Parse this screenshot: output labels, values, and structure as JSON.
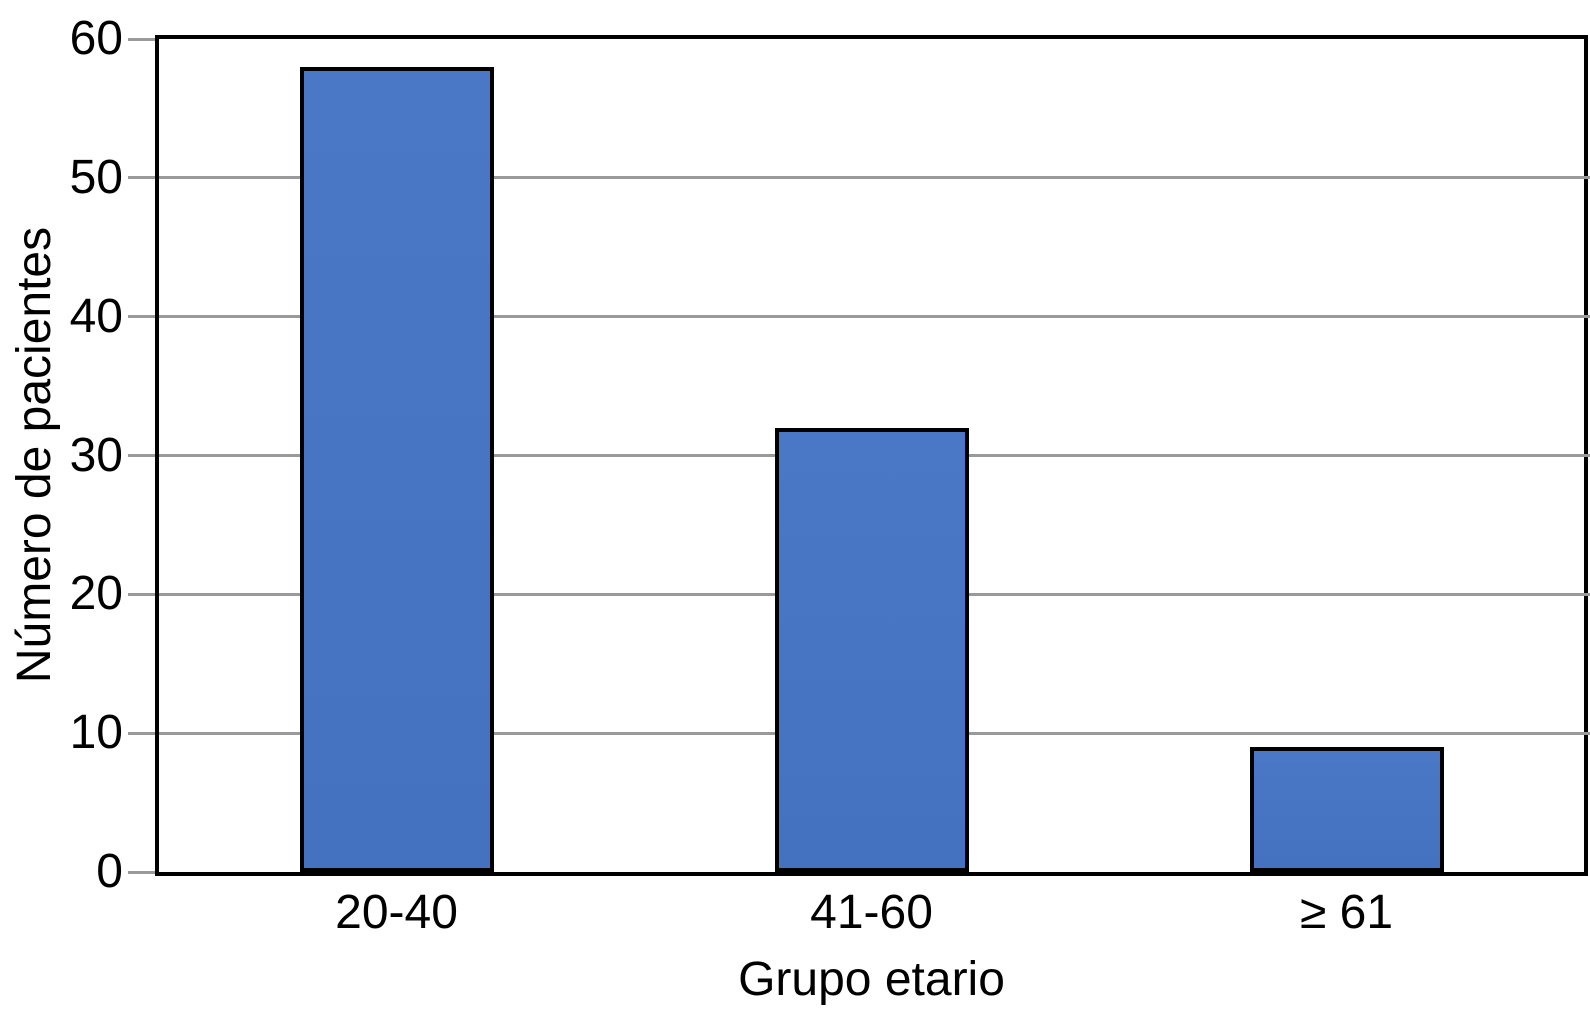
{
  "chart_data": {
    "type": "bar",
    "title": "",
    "xlabel": "Grupo etario",
    "ylabel": "Número de pacientes",
    "categories": [
      "20-40",
      "41-60",
      "≥ 61"
    ],
    "values": [
      58,
      32,
      9
    ],
    "yticks": [
      0,
      10,
      20,
      30,
      40,
      50,
      60
    ],
    "ylim": [
      0,
      60
    ],
    "grid": "horizontal",
    "legend_position": "none",
    "colors": {
      "bar_fill_top": "#4A78C6",
      "bar_fill_bottom": "#4472C0",
      "bar_border": "#000000",
      "gridline": "#9A9A9A",
      "frame": "#000000",
      "background": "#FFFFFF",
      "text": "#000000"
    }
  }
}
